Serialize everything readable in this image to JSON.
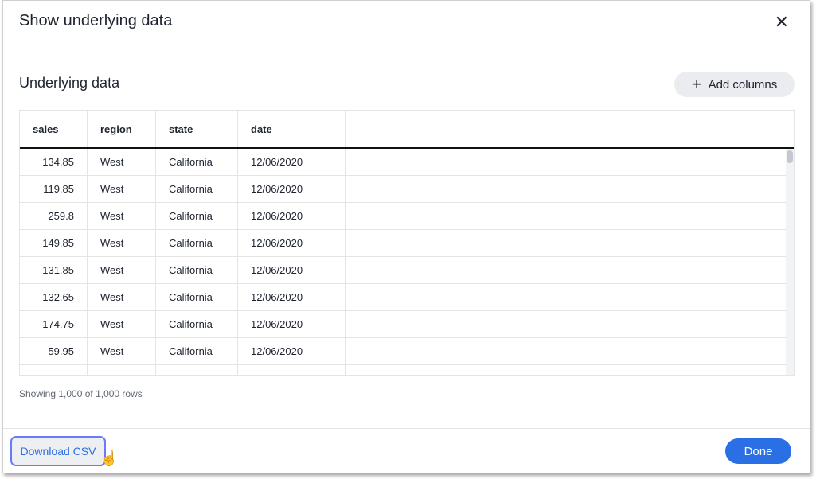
{
  "dialog": {
    "title": "Show underlying data",
    "close_icon": "close-icon"
  },
  "section": {
    "title": "Underlying data",
    "add_columns_label": "Add columns"
  },
  "table": {
    "columns": [
      "sales",
      "region",
      "state",
      "date"
    ],
    "rows": [
      [
        "134.85",
        "West",
        "California",
        "12/06/2020"
      ],
      [
        "119.85",
        "West",
        "California",
        "12/06/2020"
      ],
      [
        "259.8",
        "West",
        "California",
        "12/06/2020"
      ],
      [
        "149.85",
        "West",
        "California",
        "12/06/2020"
      ],
      [
        "131.85",
        "West",
        "California",
        "12/06/2020"
      ],
      [
        "132.65",
        "West",
        "California",
        "12/06/2020"
      ],
      [
        "174.75",
        "West",
        "California",
        "12/06/2020"
      ],
      [
        "59.95",
        "West",
        "California",
        "12/06/2020"
      ]
    ]
  },
  "row_count": "Showing 1,000 of 1,000 rows",
  "footer": {
    "download_label": "Download CSV",
    "done_label": "Done"
  },
  "colors": {
    "primary": "#2a6fe3",
    "focus_ring": "#6a7cf5"
  }
}
